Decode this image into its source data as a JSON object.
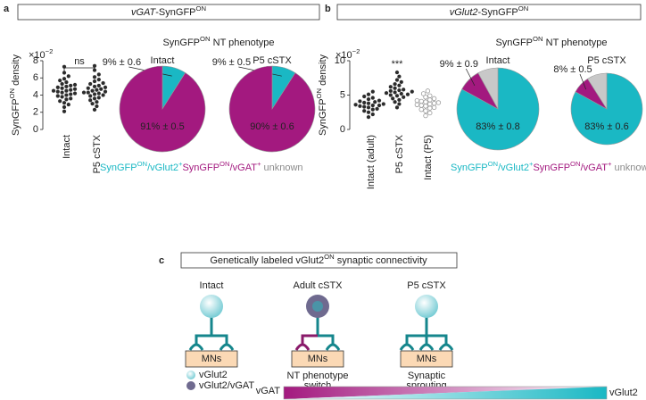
{
  "panels": [
    {
      "label": "a",
      "header": [
        {
          "i": "vGAT"
        },
        "-SynGFP",
        {
          "sup": "ON"
        }
      ],
      "pie_title": [
        "SynGFP",
        {
          "sup": "ON"
        },
        " NT phenotype"
      ],
      "legend": [
        {
          "name": [
            "SynGFP",
            {
              "sup": "ON"
            },
            "/vGlut2",
            {
              "sup": "+"
            }
          ],
          "color": "#1ab8c4"
        },
        {
          "name": [
            "SynGFP",
            {
              "sup": "ON"
            },
            "/vGAT",
            {
              "sup": "+"
            }
          ],
          "color": "#a3197f"
        },
        {
          "name": [
            " unknown"
          ],
          "color": "#8c8c8c"
        }
      ]
    },
    {
      "label": "b",
      "header": [
        {
          "i": "vGlut2"
        },
        "-SynGFP",
        {
          "sup": "ON"
        }
      ],
      "pie_title": [
        "SynGFP",
        {
          "sup": "ON"
        },
        " NT phenotype"
      ],
      "legend": [
        {
          "name": [
            "SynGFP",
            {
              "sup": "ON"
            },
            "/vGlut2",
            {
              "sup": "+"
            }
          ],
          "color": "#1ab8c4"
        },
        {
          "name": [
            "SynGFP",
            {
              "sup": "ON"
            },
            "/vGAT",
            {
              "sup": "+"
            }
          ],
          "color": "#a3197f"
        },
        {
          "name": [
            " unknown"
          ],
          "color": "#8c8c8c"
        }
      ]
    }
  ],
  "chart_data": [
    {
      "type": "strip",
      "ylabel": [
        "SynGFP",
        {
          "sup": "ON"
        },
        " density"
      ],
      "y_multiplier": [
        "×10",
        {
          "sup": "−2"
        }
      ],
      "categories": [
        "Intact",
        "P5 cSTX"
      ],
      "colors": [
        "#2b2b2b",
        "#2b2b2b"
      ],
      "filled": [
        true,
        true
      ],
      "annotation": "ns",
      "ylim": [
        0,
        8
      ],
      "yticks": [
        0,
        2,
        4,
        6,
        8
      ],
      "values": [
        [
          2.1,
          2.6,
          2.9,
          3.1,
          3.3,
          3.5,
          3.6,
          3.8,
          3.9,
          4.0,
          4.1,
          4.2,
          4.3,
          4.4,
          4.5,
          4.5,
          4.6,
          4.7,
          4.8,
          4.9,
          5.0,
          5.1,
          5.2,
          5.3,
          5.5,
          5.7,
          5.9,
          6.2,
          6.6,
          7.3
        ],
        [
          2.3,
          2.7,
          3.0,
          3.2,
          3.4,
          3.6,
          3.7,
          3.9,
          4.0,
          4.1,
          4.2,
          4.3,
          4.3,
          4.4,
          4.5,
          4.6,
          4.7,
          4.8,
          4.9,
          5.0,
          5.1,
          5.3,
          5.4,
          5.6,
          5.8,
          6.1,
          6.4,
          6.9,
          7.4
        ]
      ]
    },
    {
      "type": "pie",
      "title": "Intact",
      "values": [
        9,
        91
      ],
      "value_labels": [
        "9% ± 0.6",
        "91% ± 0.5"
      ],
      "colors": [
        "#1ab8c4",
        "#a3197f"
      ]
    },
    {
      "type": "pie",
      "title": "P5 cSTX",
      "values": [
        9,
        90
      ],
      "value_labels": [
        "9% ± 0.5",
        "90% ± 0.6"
      ],
      "colors": [
        "#1ab8c4",
        "#a3197f"
      ]
    },
    {
      "type": "strip",
      "ylabel": [
        "SynGFP",
        {
          "sup": "ON"
        },
        " density"
      ],
      "y_multiplier": [
        "×10",
        {
          "sup": "−2"
        }
      ],
      "categories": [
        "Intact (adult)",
        "P5 cSTX",
        "Intact (P5)"
      ],
      "colors": [
        "#2b2b2b",
        "#2b2b2b",
        "#9a9a9a"
      ],
      "filled": [
        true,
        true,
        false
      ],
      "annotation": "***",
      "ylim": [
        0,
        10
      ],
      "yticks": [
        0,
        5,
        10
      ],
      "values": [
        [
          1.8,
          2.2,
          2.5,
          2.7,
          2.9,
          3.0,
          3.2,
          3.3,
          3.4,
          3.5,
          3.5,
          3.6,
          3.7,
          3.8,
          3.9,
          4.0,
          4.1,
          4.2,
          4.4,
          4.6,
          4.8,
          5.1,
          5.5
        ],
        [
          3.2,
          3.7,
          4.0,
          4.3,
          4.5,
          4.7,
          4.9,
          5.0,
          5.1,
          5.2,
          5.3,
          5.4,
          5.5,
          5.6,
          5.7,
          5.8,
          6.0,
          6.2,
          6.4,
          6.6,
          6.9,
          7.2,
          7.7,
          8.3
        ],
        [
          2.0,
          2.4,
          2.7,
          2.9,
          3.1,
          3.2,
          3.4,
          3.5,
          3.6,
          3.7,
          3.8,
          3.9,
          4.0,
          4.1,
          4.2,
          4.3,
          4.5,
          4.7,
          4.9,
          5.2,
          5.6
        ]
      ]
    },
    {
      "type": "pie",
      "title": "Intact",
      "values": [
        83,
        9,
        8
      ],
      "value_labels": [
        "83% ± 0.8",
        "9% ± 0.9",
        null
      ],
      "colors": [
        "#1ab8c4",
        "#a3197f",
        "#c8c8c8"
      ]
    },
    {
      "type": "pie",
      "title": "P5 cSTX",
      "values": [
        83,
        8,
        9
      ],
      "value_labels": [
        "83% ± 0.6",
        "8% ± 0.5",
        null
      ],
      "colors": [
        "#1ab8c4",
        "#a3197f",
        "#c8c8c8"
      ]
    }
  ],
  "diagram": {
    "label": "c",
    "title": [
      "Genetically labeled vGlut2",
      {
        "sup": "ON"
      },
      " synaptic connectivity"
    ],
    "columns": [
      {
        "label": "Intact",
        "box": "MNs"
      },
      {
        "label": "Adult cSTX",
        "box": "MNs",
        "caption": [
          "NT phenotype",
          "switch"
        ]
      },
      {
        "label": "P5 cSTX",
        "box": "MNs",
        "caption": [
          "Synaptic",
          "sprouting"
        ]
      }
    ],
    "legend": [
      "vGlut2",
      "vGlut2/vGAT"
    ],
    "gradient": [
      "vGAT",
      "vGlut2"
    ]
  }
}
